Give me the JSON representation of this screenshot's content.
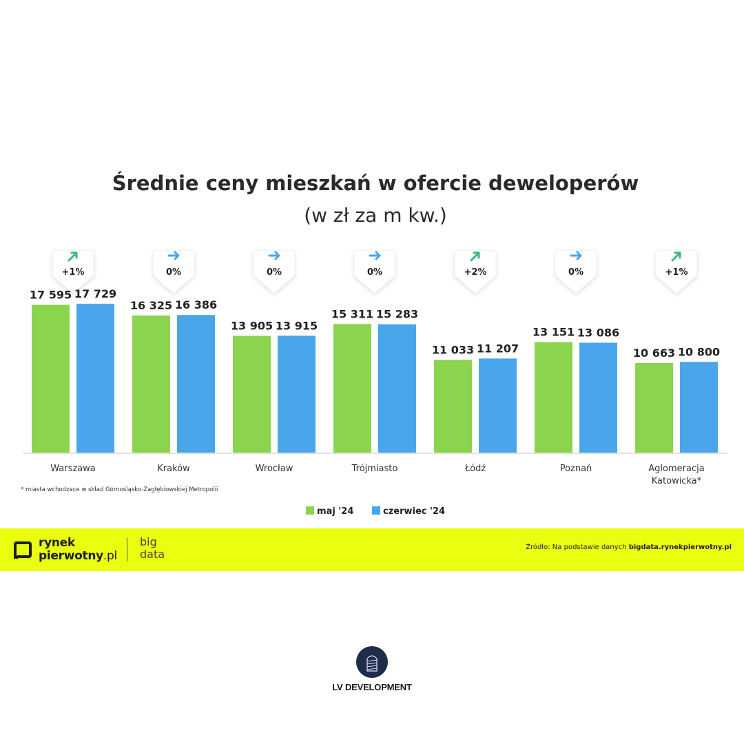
{
  "chart_data": {
    "type": "bar",
    "title": "Średnie ceny mieszkań w ofercie deweloperów",
    "subtitle": "(w zł za m kw.)",
    "categories": [
      "Warszawa",
      "Kraków",
      "Wrocław",
      "Trójmiasto",
      "Łódź",
      "Poznań",
      "Aglomeracja Katowicka*"
    ],
    "category_lines": [
      [
        "Warszawa"
      ],
      [
        "Kraków"
      ],
      [
        "Wrocław"
      ],
      [
        "Trójmiasto"
      ],
      [
        "Łódź"
      ],
      [
        "Poznań"
      ],
      [
        "Aglomeracja",
        "Katowicka*"
      ]
    ],
    "series": [
      {
        "name": "maj '24",
        "color": "#8ad44e",
        "values": [
          17595,
          16325,
          13905,
          15311,
          11033,
          13151,
          10663
        ],
        "labels": [
          "17 595",
          "16 325",
          "13 905",
          "15 311",
          "11 033",
          "13 151",
          "10 663"
        ]
      },
      {
        "name": "czerwiec '24",
        "color": "#4aa6ea",
        "values": [
          17729,
          16386,
          13915,
          15283,
          11207,
          13086,
          10800
        ],
        "labels": [
          "17 729",
          "16 386",
          "13 915",
          "15 283",
          "11 207",
          "13 086",
          "10 800"
        ]
      }
    ],
    "changes": [
      {
        "text": "+1%",
        "direction": "up"
      },
      {
        "text": "0%",
        "direction": "flat"
      },
      {
        "text": "0%",
        "direction": "flat"
      },
      {
        "text": "0%",
        "direction": "flat"
      },
      {
        "text": "+2%",
        "direction": "up"
      },
      {
        "text": "0%",
        "direction": "flat"
      },
      {
        "text": "+1%",
        "direction": "up"
      }
    ],
    "ylim": [
      0,
      20000
    ],
    "xlabel": "",
    "ylabel": "",
    "legend_position": "bottom",
    "footnote": "* miasta wchodzace w skład Górnośląsko-Zagłębiowskiej Metropolii"
  },
  "colors": {
    "up_arrow": "#3cb878",
    "flat_arrow": "#4aa6ea",
    "banner": "#eaff0f",
    "brand": "#1f2d4d"
  },
  "banner": {
    "logo_line1": "rynek",
    "logo_line2": "pierwotny",
    "logo_suffix": ".pl",
    "big": "big",
    "data": "data",
    "source_prefix": "Źródło: Na podstawie danych",
    "source_site": "bigdata.rynekpierwotny.pl"
  },
  "brand": {
    "name": "LV DEVELOPMENT"
  }
}
